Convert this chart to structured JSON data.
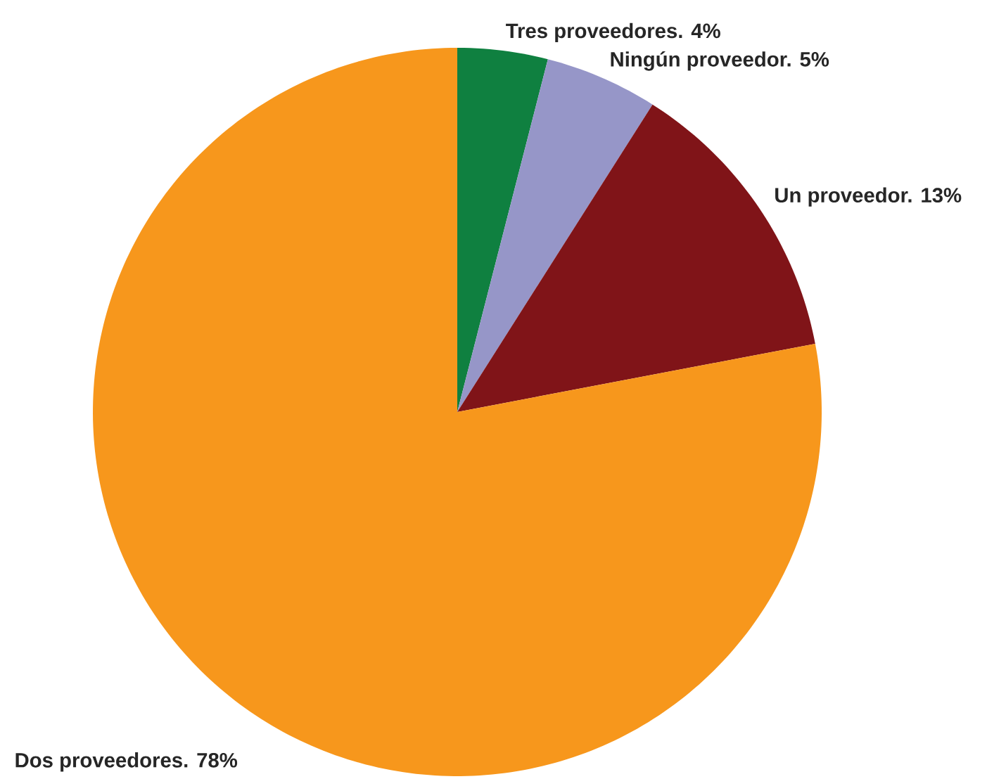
{
  "chart_data": {
    "type": "pie",
    "categories": [
      "Tres proveedores. 4%",
      "Ningún proveedor. 5%",
      "Un proveedor. 13%",
      "Dos proveedores. 78%"
    ],
    "values": [
      4,
      5,
      13,
      78
    ],
    "colors": [
      "#0f8040",
      "#9696c8",
      "#801418",
      "#f7971c"
    ]
  }
}
